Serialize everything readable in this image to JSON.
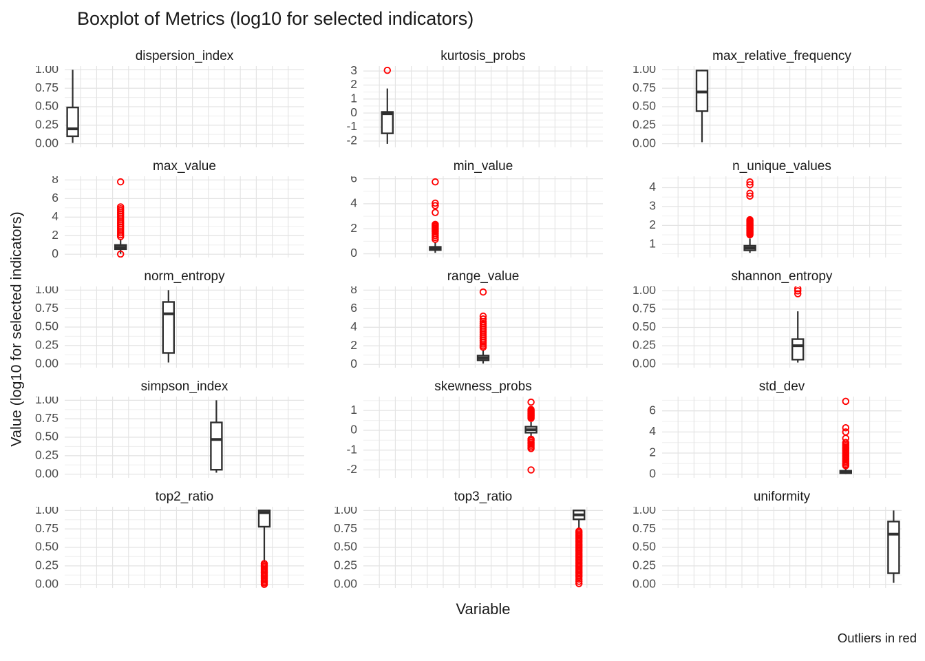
{
  "title": "Boxplot of Metrics (log10 for selected indicators)",
  "axes": {
    "x_label": "Variable",
    "y_label": "Value (log10 for selected indicators)"
  },
  "caption": "Outliers in red",
  "colors": {
    "outlier": "#FF0000",
    "box": "#2F2F2F",
    "grid_major": "#E4E4E4",
    "grid_minor": "#F0F0F0",
    "tick_text": "#4A4A4A",
    "strip_text": "#1A1A1A"
  },
  "chart_data": {
    "type": "boxplot",
    "title": "Boxplot of Metrics (log10 for selected indicators)",
    "xlabel": "Variable",
    "ylabel": "Value (log10 for selected indicators)",
    "legend": "Outliers in red",
    "grid": true,
    "n_positions": 15,
    "facets": [
      {
        "name": "dispersion_index",
        "position": 1,
        "ylim": [
          -0.05,
          1.05
        ],
        "ticks": [
          {
            "label": "1.00",
            "value": 1
          },
          {
            "label": "0.75",
            "value": 0.75
          },
          {
            "label": "0.50",
            "value": 0.5
          },
          {
            "label": "0.25",
            "value": 0.25
          },
          {
            "label": "0.00",
            "value": 0
          }
        ],
        "box": {
          "low": 0.01,
          "q1": 0.1,
          "median": 0.2,
          "q3": 0.49,
          "high": 1.0
        },
        "outliers": []
      },
      {
        "name": "kurtosis_probs",
        "position": 2,
        "ylim": [
          -2.45,
          3.35
        ],
        "ticks": [
          {
            "label": "3",
            "value": 3
          },
          {
            "label": "2",
            "value": 2
          },
          {
            "label": "1",
            "value": 1
          },
          {
            "label": "0",
            "value": 0
          },
          {
            "label": "-1",
            "value": -1
          },
          {
            "label": "-2",
            "value": -2
          }
        ],
        "box": {
          "low": -2.2,
          "q1": -1.45,
          "median": -0.05,
          "q3": 0.08,
          "high": 1.75
        },
        "outliers": [
          3.05
        ]
      },
      {
        "name": "max_relative_frequency",
        "position": 3,
        "ylim": [
          -0.05,
          1.05
        ],
        "ticks": [
          {
            "label": "1.00",
            "value": 1
          },
          {
            "label": "0.75",
            "value": 0.75
          },
          {
            "label": "0.50",
            "value": 0.5
          },
          {
            "label": "0.25",
            "value": 0.25
          },
          {
            "label": "0.00",
            "value": 0
          }
        ],
        "box": {
          "low": 0.02,
          "q1": 0.44,
          "median": 0.7,
          "q3": 0.99,
          "high": 1.0
        },
        "outliers": []
      },
      {
        "name": "max_value",
        "position": 4,
        "ylim": [
          -0.35,
          8.4
        ],
        "ticks": [
          {
            "label": "8",
            "value": 8
          },
          {
            "label": "6",
            "value": 6
          },
          {
            "label": "4",
            "value": 4
          },
          {
            "label": "2",
            "value": 2
          },
          {
            "label": "0",
            "value": 0
          }
        ],
        "box": {
          "low": 0.05,
          "q1": 0.55,
          "median": 0.75,
          "q3": 1.0,
          "high": 1.55
        },
        "outliers": [
          7.8,
          5.1,
          4.9,
          4.7,
          4.5,
          4.3,
          4.1,
          3.9,
          3.7,
          3.5,
          3.3,
          3.1,
          2.9,
          2.7,
          2.5,
          2.3,
          2.1,
          1.9,
          0.02
        ]
      },
      {
        "name": "min_value",
        "position": 5,
        "ylim": [
          -0.3,
          6.2
        ],
        "ticks": [
          {
            "label": "6",
            "value": 6
          },
          {
            "label": "4",
            "value": 4
          },
          {
            "label": "2",
            "value": 2
          },
          {
            "label": "0",
            "value": 0
          }
        ],
        "box": {
          "low": 0.08,
          "q1": 0.3,
          "median": 0.42,
          "q3": 0.55,
          "high": 0.95
        },
        "outliers": [
          5.75,
          4.05,
          3.85,
          3.3,
          2.35,
          2.25,
          2.15,
          2.05,
          1.95,
          1.85,
          1.75,
          1.6,
          1.45,
          1.3,
          1.15
        ]
      },
      {
        "name": "n_unique_values",
        "position": 6,
        "ylim": [
          0.3,
          4.6
        ],
        "ticks": [
          {
            "label": "4",
            "value": 4
          },
          {
            "label": "3",
            "value": 3
          },
          {
            "label": "2",
            "value": 2
          },
          {
            "label": "1",
            "value": 1
          }
        ],
        "box": {
          "low": 0.55,
          "q1": 0.68,
          "median": 0.8,
          "q3": 0.92,
          "high": 1.3
        },
        "outliers": [
          4.3,
          4.15,
          3.7,
          3.55,
          2.3,
          2.25,
          2.2,
          2.15,
          2.1,
          2.05,
          2.0,
          1.95,
          1.9,
          1.85,
          1.8,
          1.75,
          1.7,
          1.65,
          1.6,
          1.55,
          1.5
        ]
      },
      {
        "name": "norm_entropy",
        "position": 7,
        "ylim": [
          -0.05,
          1.05
        ],
        "ticks": [
          {
            "label": "1.00",
            "value": 1
          },
          {
            "label": "0.75",
            "value": 0.75
          },
          {
            "label": "0.50",
            "value": 0.5
          },
          {
            "label": "0.25",
            "value": 0.25
          },
          {
            "label": "0.00",
            "value": 0
          }
        ],
        "box": {
          "low": 0.02,
          "q1": 0.15,
          "median": 0.68,
          "q3": 0.84,
          "high": 1.0
        },
        "outliers": []
      },
      {
        "name": "range_value",
        "position": 8,
        "ylim": [
          -0.35,
          8.4
        ],
        "ticks": [
          {
            "label": "8",
            "value": 8
          },
          {
            "label": "6",
            "value": 6
          },
          {
            "label": "4",
            "value": 4
          },
          {
            "label": "2",
            "value": 2
          },
          {
            "label": "0",
            "value": 0
          }
        ],
        "box": {
          "low": 0.1,
          "q1": 0.45,
          "median": 0.7,
          "q3": 0.95,
          "high": 1.6
        },
        "outliers": [
          7.8,
          5.2,
          4.9,
          4.6,
          4.4,
          4.2,
          4.0,
          3.8,
          3.6,
          3.4,
          3.2,
          3.0,
          2.8,
          2.6,
          2.4,
          2.2,
          2.0,
          1.85
        ]
      },
      {
        "name": "shannon_entropy",
        "position": 9,
        "ylim": [
          -0.05,
          1.06
        ],
        "ticks": [
          {
            "label": "1.00",
            "value": 1
          },
          {
            "label": "0.75",
            "value": 0.75
          },
          {
            "label": "0.50",
            "value": 0.5
          },
          {
            "label": "0.25",
            "value": 0.25
          },
          {
            "label": "0.00",
            "value": 0
          }
        ],
        "box": {
          "low": 0.02,
          "q1": 0.06,
          "median": 0.25,
          "q3": 0.34,
          "high": 0.72
        },
        "outliers": [
          1.03,
          1.0,
          0.96
        ]
      },
      {
        "name": "simpson_index",
        "position": 10,
        "ylim": [
          -0.05,
          1.05
        ],
        "ticks": [
          {
            "label": "1.00",
            "value": 1
          },
          {
            "label": "0.75",
            "value": 0.75
          },
          {
            "label": "0.50",
            "value": 0.5
          },
          {
            "label": "0.25",
            "value": 0.25
          },
          {
            "label": "0.00",
            "value": 0
          }
        ],
        "box": {
          "low": 0.02,
          "q1": 0.06,
          "median": 0.47,
          "q3": 0.7,
          "high": 1.0
        },
        "outliers": []
      },
      {
        "name": "skewness_probs",
        "position": 11,
        "ylim": [
          -2.4,
          1.7
        ],
        "ticks": [
          {
            "label": "1",
            "value": 1
          },
          {
            "label": "0",
            "value": 0
          },
          {
            "label": "-1",
            "value": -1
          },
          {
            "label": "-2",
            "value": -2
          }
        ],
        "box": {
          "low": -0.35,
          "q1": -0.12,
          "median": 0.03,
          "q3": 0.18,
          "high": 0.42
        },
        "outliers": [
          1.42,
          1.05,
          1.0,
          0.95,
          0.9,
          0.85,
          0.8,
          0.75,
          0.7,
          0.65,
          0.6,
          -0.45,
          -0.52,
          -0.6,
          -0.68,
          -0.76,
          -0.84,
          -0.92,
          -2.0
        ]
      },
      {
        "name": "std_dev",
        "position": 12,
        "ylim": [
          -0.35,
          7.35
        ],
        "ticks": [
          {
            "label": "6",
            "value": 6
          },
          {
            "label": "4",
            "value": 4
          },
          {
            "label": "2",
            "value": 2
          },
          {
            "label": "0",
            "value": 0
          }
        ],
        "box": {
          "low": 0.02,
          "q1": 0.1,
          "median": 0.2,
          "q3": 0.32,
          "high": 0.7
        },
        "outliers": [
          6.9,
          4.4,
          4.0,
          3.4,
          3.0,
          2.85,
          2.7,
          2.55,
          2.4,
          2.25,
          2.1,
          1.95,
          1.8,
          1.65,
          1.5,
          1.35,
          1.2,
          1.05,
          0.9,
          0.8
        ]
      },
      {
        "name": "top2_ratio",
        "position": 13,
        "ylim": [
          -0.05,
          1.05
        ],
        "ticks": [
          {
            "label": "1.00",
            "value": 1
          },
          {
            "label": "0.75",
            "value": 0.75
          },
          {
            "label": "0.50",
            "value": 0.5
          },
          {
            "label": "0.25",
            "value": 0.25
          },
          {
            "label": "0.00",
            "value": 0
          }
        ],
        "box": {
          "low": 0.3,
          "q1": 0.78,
          "median": 0.97,
          "q3": 1.0,
          "high": 1.0
        },
        "outliers": [
          0.28,
          0.26,
          0.24,
          0.22,
          0.2,
          0.18,
          0.16,
          0.14,
          0.12,
          0.1,
          0.08,
          0.06,
          0.04,
          0.02,
          0.0
        ]
      },
      {
        "name": "top3_ratio",
        "position": 14,
        "ylim": [
          -0.05,
          1.05
        ],
        "ticks": [
          {
            "label": "1.00",
            "value": 1
          },
          {
            "label": "0.75",
            "value": 0.75
          },
          {
            "label": "0.50",
            "value": 0.5
          },
          {
            "label": "0.25",
            "value": 0.25
          },
          {
            "label": "0.00",
            "value": 0
          }
        ],
        "box": {
          "low": 0.75,
          "q1": 0.88,
          "median": 0.94,
          "q3": 1.0,
          "high": 1.0
        },
        "outliers": [
          0.72,
          0.7,
          0.68,
          0.66,
          0.64,
          0.62,
          0.6,
          0.58,
          0.56,
          0.54,
          0.52,
          0.5,
          0.48,
          0.46,
          0.44,
          0.42,
          0.4,
          0.38,
          0.36,
          0.34,
          0.32,
          0.3,
          0.28,
          0.26,
          0.24,
          0.22,
          0.2,
          0.18,
          0.16,
          0.14,
          0.12,
          0.1,
          0.07,
          0.04,
          0.01
        ]
      },
      {
        "name": "uniformity",
        "position": 15,
        "ylim": [
          -0.05,
          1.05
        ],
        "ticks": [
          {
            "label": "1.00",
            "value": 1
          },
          {
            "label": "0.75",
            "value": 0.75
          },
          {
            "label": "0.50",
            "value": 0.5
          },
          {
            "label": "0.25",
            "value": 0.25
          },
          {
            "label": "0.00",
            "value": 0
          }
        ],
        "box": {
          "low": 0.02,
          "q1": 0.15,
          "median": 0.68,
          "q3": 0.85,
          "high": 1.0
        },
        "outliers": []
      }
    ]
  }
}
